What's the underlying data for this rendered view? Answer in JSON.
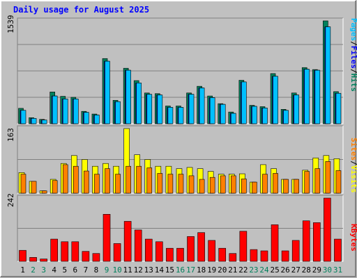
{
  "title": "Daily usage for August 2025",
  "colors": {
    "background": "#c0c0c0",
    "title": "#0000ff",
    "hits": "#00805c",
    "files": "#0000ff",
    "pages": "#00c0ff",
    "visits": "#ffff00",
    "sites": "#ff8000",
    "kbytes": "#ff0000",
    "day_weekday": "#000000",
    "day_weekend": "#00805c"
  },
  "chart_data": [
    {
      "type": "bar",
      "name": "hits-files-pages",
      "categories": [
        "1",
        "2",
        "3",
        "4",
        "5",
        "6",
        "7",
        "8",
        "9",
        "10",
        "11",
        "12",
        "13",
        "14",
        "15",
        "16",
        "17",
        "18",
        "19",
        "20",
        "21",
        "22",
        "23",
        "24",
        "25",
        "26",
        "27",
        "28",
        "29",
        "30",
        "31"
      ],
      "weekend_days": [
        "2",
        "3",
        "9",
        "10",
        "16",
        "17",
        "23",
        "24",
        "30",
        "31"
      ],
      "ylim": [
        0,
        1539
      ],
      "max_label": "1539",
      "legend": [
        "Pages",
        "/",
        "Files",
        "/",
        "Hits"
      ],
      "series": [
        {
          "name": "Hits",
          "values": [
            230,
            90,
            65,
            475,
            410,
            395,
            185,
            145,
            975,
            350,
            830,
            645,
            460,
            450,
            265,
            265,
            460,
            560,
            415,
            300,
            175,
            650,
            275,
            255,
            750,
            215,
            460,
            840,
            810,
            1539,
            480
          ]
        },
        {
          "name": "Files",
          "values": [
            200,
            80,
            55,
            415,
            370,
            370,
            170,
            130,
            935,
            330,
            800,
            610,
            440,
            430,
            245,
            245,
            440,
            535,
            390,
            290,
            155,
            625,
            260,
            235,
            710,
            200,
            430,
            815,
            800,
            1450,
            455
          ]
        },
        {
          "name": "Pages",
          "values": [
            200,
            80,
            55,
            415,
            370,
            370,
            170,
            130,
            935,
            330,
            800,
            610,
            440,
            430,
            245,
            245,
            440,
            535,
            390,
            290,
            155,
            625,
            260,
            235,
            710,
            200,
            430,
            815,
            800,
            1450,
            455
          ]
        }
      ]
    },
    {
      "type": "bar",
      "name": "visits-sites",
      "categories": [
        "1",
        "2",
        "3",
        "4",
        "5",
        "6",
        "7",
        "8",
        "9",
        "10",
        "11",
        "12",
        "13",
        "14",
        "15",
        "16",
        "17",
        "18",
        "19",
        "20",
        "21",
        "22",
        "23",
        "24",
        "25",
        "26",
        "27",
        "28",
        "29",
        "30",
        "31"
      ],
      "ylim": [
        0,
        163
      ],
      "max_label": "163",
      "legend": [
        "Sites",
        "/",
        "Visits"
      ],
      "series": [
        {
          "name": "Visits",
          "values": [
            52,
            30,
            6,
            35,
            75,
            95,
            85,
            68,
            75,
            68,
            163,
            97,
            85,
            68,
            68,
            62,
            65,
            62,
            55,
            48,
            48,
            49,
            28,
            72,
            62,
            35,
            35,
            58,
            89,
            95,
            87
          ]
        },
        {
          "name": "Sites",
          "values": [
            48,
            30,
            6,
            32,
            72,
            68,
            56,
            48,
            62,
            48,
            68,
            68,
            64,
            50,
            48,
            48,
            44,
            35,
            40,
            44,
            44,
            36,
            28,
            48,
            50,
            35,
            35,
            55,
            62,
            80,
            57
          ]
        }
      ]
    },
    {
      "type": "bar",
      "name": "kbytes",
      "categories": [
        "1",
        "2",
        "3",
        "4",
        "5",
        "6",
        "7",
        "8",
        "9",
        "10",
        "11",
        "12",
        "13",
        "14",
        "15",
        "16",
        "17",
        "18",
        "19",
        "20",
        "21",
        "22",
        "23",
        "24",
        "25",
        "26",
        "27",
        "28",
        "29",
        "30",
        "31"
      ],
      "ylim": [
        0,
        242
      ],
      "max_label": "242",
      "legend": [
        "KBytes"
      ],
      "series": [
        {
          "name": "KBytes",
          "values": [
            42,
            15,
            9,
            85,
            75,
            75,
            38,
            30,
            180,
            68,
            153,
            120,
            85,
            75,
            50,
            50,
            95,
            110,
            80,
            50,
            30,
            115,
            45,
            40,
            140,
            40,
            80,
            155,
            148,
            242,
            85
          ]
        }
      ]
    }
  ]
}
